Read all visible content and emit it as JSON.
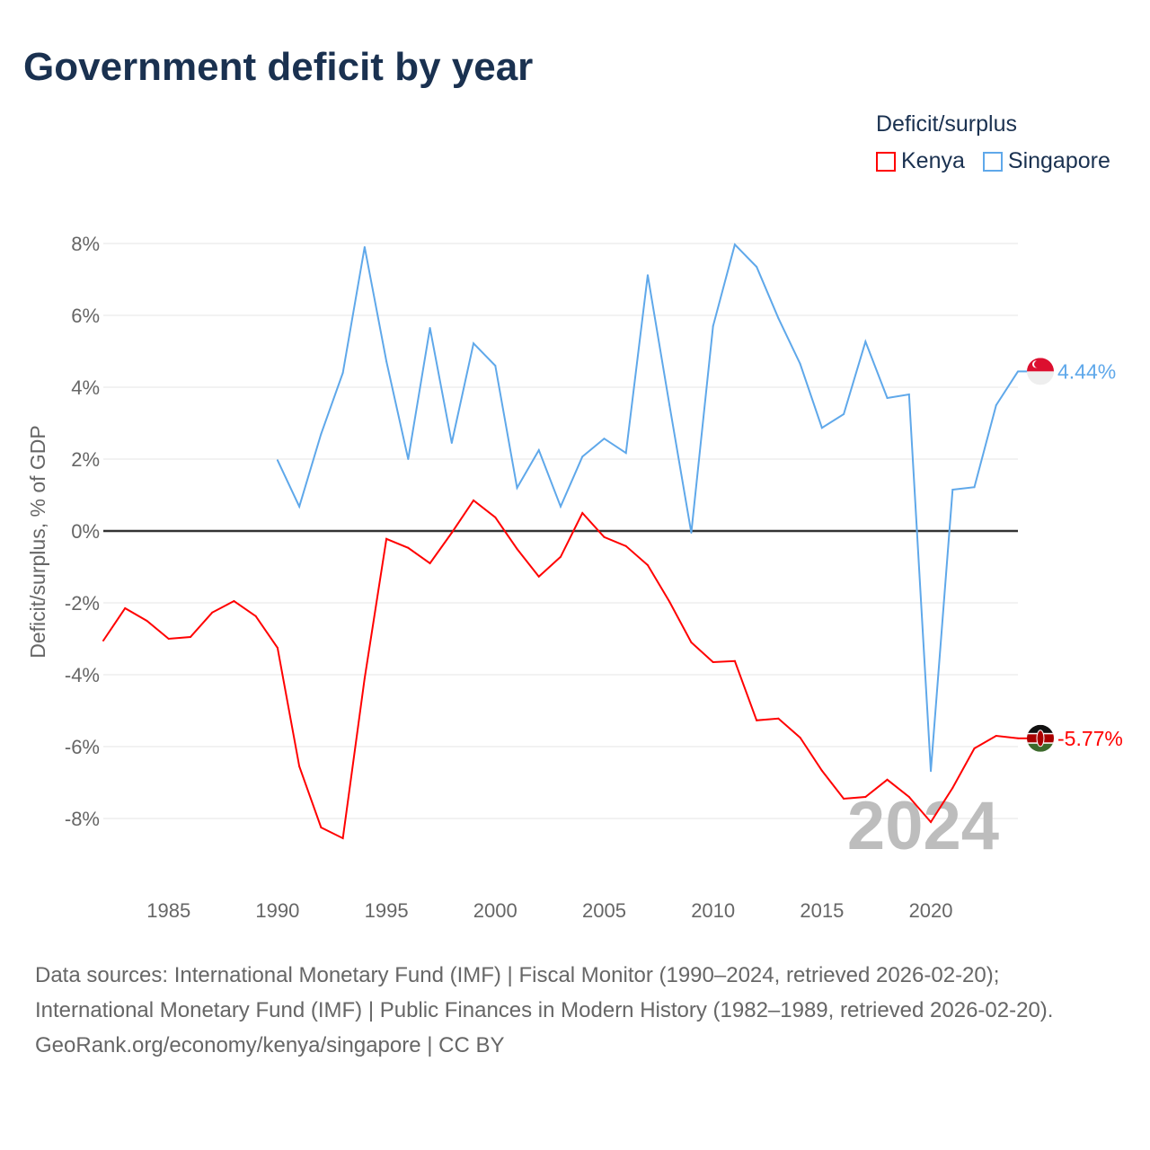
{
  "title": "Government deficit by year",
  "legend": {
    "title": "Deficit/surplus"
  },
  "year_watermark": "2024",
  "footer": {
    "sources": "Data sources: International Monetary Fund (IMF) | Fiscal Monitor (1990–2024, retrieved 2026-02-20); International Monetary Fund (IMF) | Public Finances in Modern History (1982–1989, retrieved 2026-02-20).",
    "credit": "GeoRank.org/economy/kenya/singapore | CC BY"
  },
  "chart_data": {
    "type": "line",
    "title": "Government deficit by year",
    "xlabel": "",
    "ylabel": "Deficit/surplus, % of GDP",
    "xlim": [
      1982,
      2024
    ],
    "ylim": [
      -9.5,
      8.5
    ],
    "yticks": [
      8,
      6,
      4,
      2,
      0,
      -2,
      -4,
      -6,
      -8
    ],
    "ytick_labels": [
      "8%",
      "6%",
      "4%",
      "2%",
      "0%",
      "-2%",
      "-4%",
      "-6%",
      "-8%"
    ],
    "xticks": [
      1985,
      1990,
      1995,
      2000,
      2005,
      2010,
      2015,
      2020
    ],
    "xtick_labels": [
      "1985",
      "1990",
      "1995",
      "2000",
      "2005",
      "2010",
      "2015",
      "2020"
    ],
    "grid": true,
    "legend_position": "top-right",
    "series": [
      {
        "name": "Kenya",
        "color": "#ff0000",
        "end_label": "-5.77%",
        "x": [
          1982,
          1983,
          1984,
          1985,
          1986,
          1987,
          1988,
          1989,
          1990,
          1991,
          1992,
          1993,
          1994,
          1995,
          1996,
          1997,
          1998,
          1999,
          2000,
          2001,
          2002,
          2003,
          2004,
          2005,
          2006,
          2007,
          2008,
          2009,
          2010,
          2011,
          2012,
          2013,
          2014,
          2015,
          2016,
          2017,
          2018,
          2019,
          2020,
          2021,
          2022,
          2023,
          2024
        ],
        "values": [
          -3.05,
          -2.15,
          -2.5,
          -3.0,
          -2.95,
          -2.27,
          -1.95,
          -2.37,
          -3.25,
          -6.55,
          -8.25,
          -8.55,
          -4.1,
          -0.22,
          -0.47,
          -0.9,
          -0.05,
          0.85,
          0.38,
          -0.5,
          -1.27,
          -0.72,
          0.5,
          -0.17,
          -0.42,
          -0.95,
          -1.97,
          -3.1,
          -3.65,
          -3.62,
          -5.27,
          -5.22,
          -5.75,
          -6.67,
          -7.45,
          -7.4,
          -6.92,
          -7.4,
          -8.1,
          -7.15,
          -6.05,
          -5.7,
          -5.77
        ]
      },
      {
        "name": "Singapore",
        "color": "#5fa8ea",
        "end_label": "4.44%",
        "x": [
          1990,
          1991,
          1992,
          1993,
          1994,
          1995,
          1996,
          1997,
          1998,
          1999,
          2000,
          2001,
          2002,
          2003,
          2004,
          2005,
          2006,
          2007,
          2008,
          2009,
          2010,
          2011,
          2012,
          2013,
          2014,
          2015,
          2016,
          2017,
          2018,
          2019,
          2020,
          2021,
          2022,
          2023,
          2024
        ],
        "values": [
          1.97,
          0.68,
          2.7,
          4.4,
          7.9,
          4.72,
          2.0,
          5.65,
          2.45,
          5.22,
          4.6,
          1.2,
          2.25,
          0.68,
          2.07,
          2.57,
          2.17,
          7.12,
          3.5,
          -0.05,
          5.7,
          7.97,
          7.35,
          5.92,
          4.65,
          2.87,
          3.25,
          5.27,
          3.7,
          3.8,
          -6.68,
          1.15,
          1.22,
          3.5,
          4.44
        ]
      }
    ]
  }
}
